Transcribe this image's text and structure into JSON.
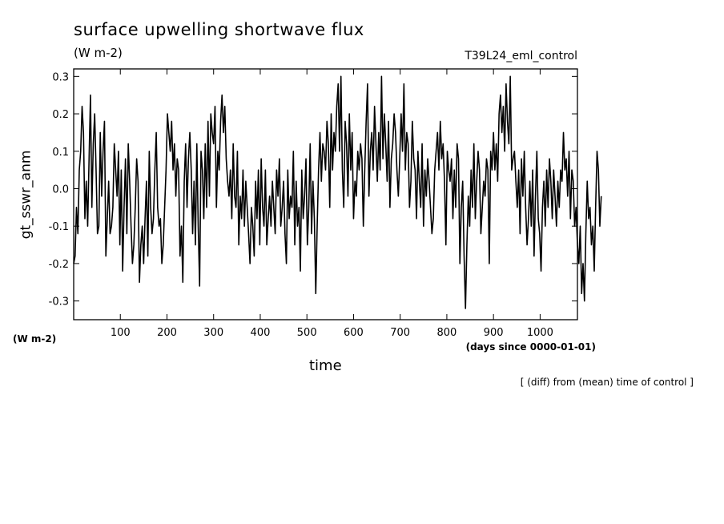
{
  "chart_data": {
    "type": "line",
    "title": "surface upwelling shortwave flux",
    "subtitle": "(W m-2)",
    "run_label": "T39L24_eml_control",
    "ylabel": "gt_sswr_anm",
    "y_units": "(W m-2)",
    "xlabel": "time",
    "x_units": "(days since 0000-01-01)",
    "annotation": "[ (diff) from (mean) time of control ]",
    "xlim": [
      0,
      1080
    ],
    "ylim": [
      -0.35,
      0.32
    ],
    "x_ticks": [
      100,
      200,
      300,
      400,
      500,
      600,
      700,
      800,
      900,
      1000
    ],
    "y_ticks": [
      0.3,
      0.2,
      0.1,
      0.0,
      -0.1,
      -0.2,
      -0.3
    ],
    "y_tick_labels": [
      "0.3",
      "0.2",
      "0.1",
      "0.0",
      "-0.1",
      "-0.2",
      "-0.3"
    ],
    "grid": false,
    "line_color": "#000000",
    "x_step": 3,
    "series": [
      {
        "values": [
          -0.2,
          -0.18,
          -0.05,
          -0.12,
          0.05,
          0.1,
          0.22,
          0.15,
          -0.08,
          0.02,
          -0.1,
          0.08,
          0.25,
          -0.05,
          0.12,
          0.2,
          0.05,
          -0.12,
          -0.1,
          0.15,
          -0.02,
          0.1,
          0.18,
          -0.18,
          -0.08,
          0.02,
          -0.12,
          -0.1,
          -0.05,
          0.12,
          0.05,
          -0.02,
          0.1,
          -0.15,
          0.05,
          -0.22,
          -0.05,
          0.08,
          -0.12,
          0.12,
          0.02,
          -0.1,
          -0.2,
          -0.15,
          -0.05,
          0.08,
          0.02,
          -0.25,
          -0.15,
          -0.1,
          -0.2,
          -0.08,
          0.02,
          -0.18,
          0.1,
          -0.05,
          -0.12,
          -0.08,
          0.05,
          0.15,
          -0.05,
          -0.1,
          -0.08,
          -0.2,
          -0.15,
          -0.05,
          0.05,
          0.2,
          0.15,
          0.1,
          0.18,
          0.05,
          0.12,
          -0.02,
          0.08,
          0.05,
          -0.18,
          -0.1,
          -0.25,
          0.02,
          0.12,
          -0.05,
          0.08,
          0.15,
          0.05,
          -0.12,
          0.02,
          -0.15,
          0.12,
          -0.1,
          -0.26,
          0.1,
          0.05,
          -0.08,
          0.12,
          -0.05,
          0.18,
          -0.02,
          0.2,
          0.15,
          0.12,
          0.22,
          -0.05,
          0.1,
          0.05,
          0.18,
          0.25,
          0.15,
          0.22,
          0.08,
          0.02,
          -0.02,
          0.05,
          -0.08,
          0.12,
          -0.02,
          -0.05,
          0.1,
          -0.15,
          -0.02,
          -0.08,
          0.05,
          -0.1,
          0.02,
          -0.05,
          -0.12,
          -0.2,
          -0.05,
          -0.1,
          -0.18,
          0.02,
          -0.08,
          0.05,
          -0.15,
          0.08,
          -0.05,
          -0.1,
          0.05,
          -0.15,
          -0.08,
          -0.02,
          -0.1,
          0.02,
          -0.05,
          -0.12,
          0.05,
          -0.02,
          0.08,
          -0.1,
          -0.05,
          0.02,
          -0.12,
          -0.2,
          0.05,
          -0.08,
          -0.02,
          -0.05,
          0.1,
          -0.15,
          0.02,
          -0.1,
          -0.05,
          -0.22,
          0.05,
          -0.08,
          -0.02,
          0.08,
          -0.15,
          -0.05,
          0.12,
          -0.12,
          0.02,
          -0.08,
          -0.28,
          -0.1,
          0.05,
          0.15,
          0.02,
          0.12,
          0.1,
          0.05,
          0.18,
          0.12,
          -0.05,
          0.2,
          0.05,
          0.15,
          0.1,
          0.22,
          0.28,
          0.1,
          0.3,
          0.05,
          -0.05,
          0.18,
          0.12,
          -0.02,
          0.2,
          0.05,
          0.15,
          -0.08,
          0.02,
          -0.02,
          0.1,
          0.05,
          0.12,
          0.08,
          -0.1,
          0.05,
          0.18,
          0.28,
          -0.02,
          0.1,
          0.15,
          0.05,
          0.22,
          0.12,
          0.02,
          0.15,
          0.05,
          0.3,
          0.08,
          0.2,
          0.12,
          0.02,
          0.18,
          -0.05,
          0.08,
          0.12,
          0.2,
          0.15,
          0.05,
          -0.02,
          0.08,
          0.2,
          0.1,
          0.28,
          0.05,
          0.15,
          0.12,
          -0.05,
          0.02,
          0.18,
          0.08,
          0.05,
          -0.08,
          0.1,
          0.02,
          -0.05,
          0.12,
          -0.1,
          0.05,
          -0.02,
          0.08,
          0.02,
          -0.05,
          -0.12,
          -0.08,
          0.05,
          0.1,
          0.15,
          0.05,
          0.18,
          0.08,
          0.12,
          0.02,
          -0.15,
          0.1,
          0.05,
          0.02,
          0.08,
          -0.08,
          0.05,
          -0.05,
          0.12,
          0.08,
          -0.2,
          -0.05,
          0.02,
          -0.18,
          -0.32,
          -0.15,
          -0.02,
          -0.1,
          0.05,
          -0.05,
          0.12,
          -0.08,
          0.02,
          0.1,
          0.05,
          -0.12,
          -0.05,
          0.02,
          -0.02,
          0.08,
          0.05,
          -0.2,
          0.1,
          0.05,
          0.15,
          0.05,
          0.12,
          0.02,
          0.2,
          0.25,
          0.15,
          0.22,
          0.1,
          0.28,
          0.18,
          0.12,
          0.3,
          0.05,
          0.08,
          0.1,
          0.02,
          -0.05,
          0.05,
          -0.12,
          0.08,
          -0.02,
          0.1,
          -0.05,
          -0.15,
          -0.08,
          0.02,
          -0.1,
          0.05,
          -0.18,
          -0.02,
          0.1,
          -0.08,
          -0.12,
          -0.22,
          -0.05,
          0.02,
          -0.1,
          0.05,
          -0.05,
          0.08,
          0.02,
          -0.08,
          0.05,
          -0.02,
          -0.1,
          0.02,
          -0.05,
          0.05,
          0.02,
          0.15,
          0.05,
          0.08,
          -0.02,
          0.1,
          -0.08,
          0.05,
          0.02,
          -0.1,
          -0.05,
          -0.15,
          -0.2,
          -0.1,
          -0.28,
          -0.2,
          -0.3,
          -0.12,
          0.02,
          -0.08,
          -0.05,
          -0.15,
          -0.1,
          -0.22,
          -0.05,
          0.1,
          0.05,
          -0.1,
          -0.02
        ]
      }
    ]
  }
}
